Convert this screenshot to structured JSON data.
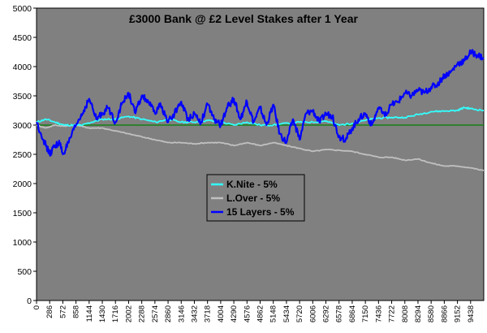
{
  "chart_data": {
    "type": "line",
    "title": "£3000 Bank @ £2 Level Stakes  after 1 Year",
    "xlabel": "",
    "ylabel": "",
    "xlim": [
      0,
      9724
    ],
    "ylim": [
      0,
      5000
    ],
    "y_ticks": [
      0,
      500,
      1000,
      1500,
      2000,
      2500,
      3000,
      3500,
      4000,
      4500,
      5000
    ],
    "x_ticks": [
      0,
      286,
      572,
      858,
      1144,
      1430,
      1716,
      2002,
      2288,
      2574,
      2860,
      3146,
      3432,
      3718,
      4004,
      4290,
      4576,
      4862,
      5148,
      5434,
      5720,
      6006,
      6292,
      6578,
      6864,
      7150,
      7436,
      7722,
      8008,
      8294,
      8580,
      8866,
      9152,
      9438
    ],
    "grid": false,
    "background": "#808080",
    "reference_line": {
      "value": 3000,
      "color": "#008000"
    },
    "legend_position": "center",
    "series": [
      {
        "name": "K.Nite - 5%",
        "color": "#33ffff",
        "x": [
          0,
          200,
          400,
          600,
          800,
          1000,
          1200,
          1430,
          1700,
          2000,
          2300,
          2600,
          2860,
          3146,
          3432,
          3718,
          4004,
          4290,
          4576,
          4862,
          5148,
          5434,
          5720,
          6006,
          6292,
          6578,
          6864,
          7150,
          7436,
          7722,
          8008,
          8294,
          8580,
          8866,
          9152,
          9300,
          9438,
          9724
        ],
        "values": [
          3050,
          3100,
          3050,
          3000,
          3000,
          3000,
          3050,
          3100,
          3100,
          3150,
          3100,
          3050,
          3100,
          3050,
          3050,
          3080,
          3050,
          3000,
          3050,
          3000,
          3000,
          3030,
          3050,
          3050,
          3070,
          3000,
          3030,
          3080,
          3120,
          3130,
          3130,
          3180,
          3230,
          3240,
          3250,
          3300,
          3280,
          3250
        ]
      },
      {
        "name": "L.Over - 5%",
        "color": "#c0c0c0",
        "x": [
          0,
          200,
          400,
          600,
          858,
          1144,
          1430,
          1716,
          2002,
          2288,
          2574,
          2860,
          3146,
          3432,
          3718,
          4004,
          4290,
          4576,
          4862,
          5148,
          5434,
          5720,
          6006,
          6292,
          6578,
          6864,
          7150,
          7436,
          7722,
          8008,
          8294,
          8580,
          8866,
          9152,
          9438,
          9724
        ],
        "values": [
          3000,
          2950,
          3000,
          2980,
          3000,
          2950,
          2950,
          2900,
          2850,
          2800,
          2750,
          2700,
          2700,
          2680,
          2700,
          2700,
          2650,
          2700,
          2650,
          2700,
          2650,
          2600,
          2550,
          2580,
          2570,
          2550,
          2500,
          2450,
          2450,
          2400,
          2420,
          2350,
          2300,
          2300,
          2270,
          2220
        ]
      },
      {
        "name": "15 Layers - 5%",
        "color": "#0000ff",
        "x": [
          0,
          150,
          286,
          400,
          500,
          572,
          700,
          858,
          1000,
          1144,
          1300,
          1430,
          1550,
          1716,
          1850,
          2002,
          2150,
          2288,
          2430,
          2574,
          2700,
          2860,
          3000,
          3146,
          3290,
          3432,
          3575,
          3718,
          3860,
          4004,
          4150,
          4290,
          4430,
          4576,
          4720,
          4862,
          5000,
          5148,
          5290,
          5434,
          5575,
          5720,
          5860,
          6006,
          6150,
          6292,
          6430,
          6578,
          6720,
          6864,
          7000,
          7150,
          7290,
          7436,
          7575,
          7722,
          7860,
          8008,
          8150,
          8294,
          8430,
          8580,
          8720,
          8866,
          9000,
          9152,
          9300,
          9438,
          9580,
          9724
        ],
        "values": [
          3050,
          2750,
          2500,
          2650,
          2700,
          2500,
          2700,
          3000,
          3200,
          3450,
          3100,
          3200,
          3300,
          3050,
          3350,
          3550,
          3200,
          3500,
          3400,
          3200,
          3350,
          3050,
          3200,
          3400,
          3100,
          3200,
          3050,
          3350,
          3100,
          3000,
          3300,
          3450,
          3100,
          3400,
          3050,
          3300,
          3000,
          3350,
          2850,
          2700,
          3100,
          2750,
          3200,
          3250,
          3050,
          3200,
          3150,
          2800,
          2750,
          2950,
          3100,
          3200,
          3000,
          3300,
          3150,
          3350,
          3400,
          3550,
          3500,
          3600,
          3550,
          3650,
          3700,
          3850,
          3900,
          4050,
          4100,
          4250,
          4200,
          4150
        ]
      }
    ]
  }
}
